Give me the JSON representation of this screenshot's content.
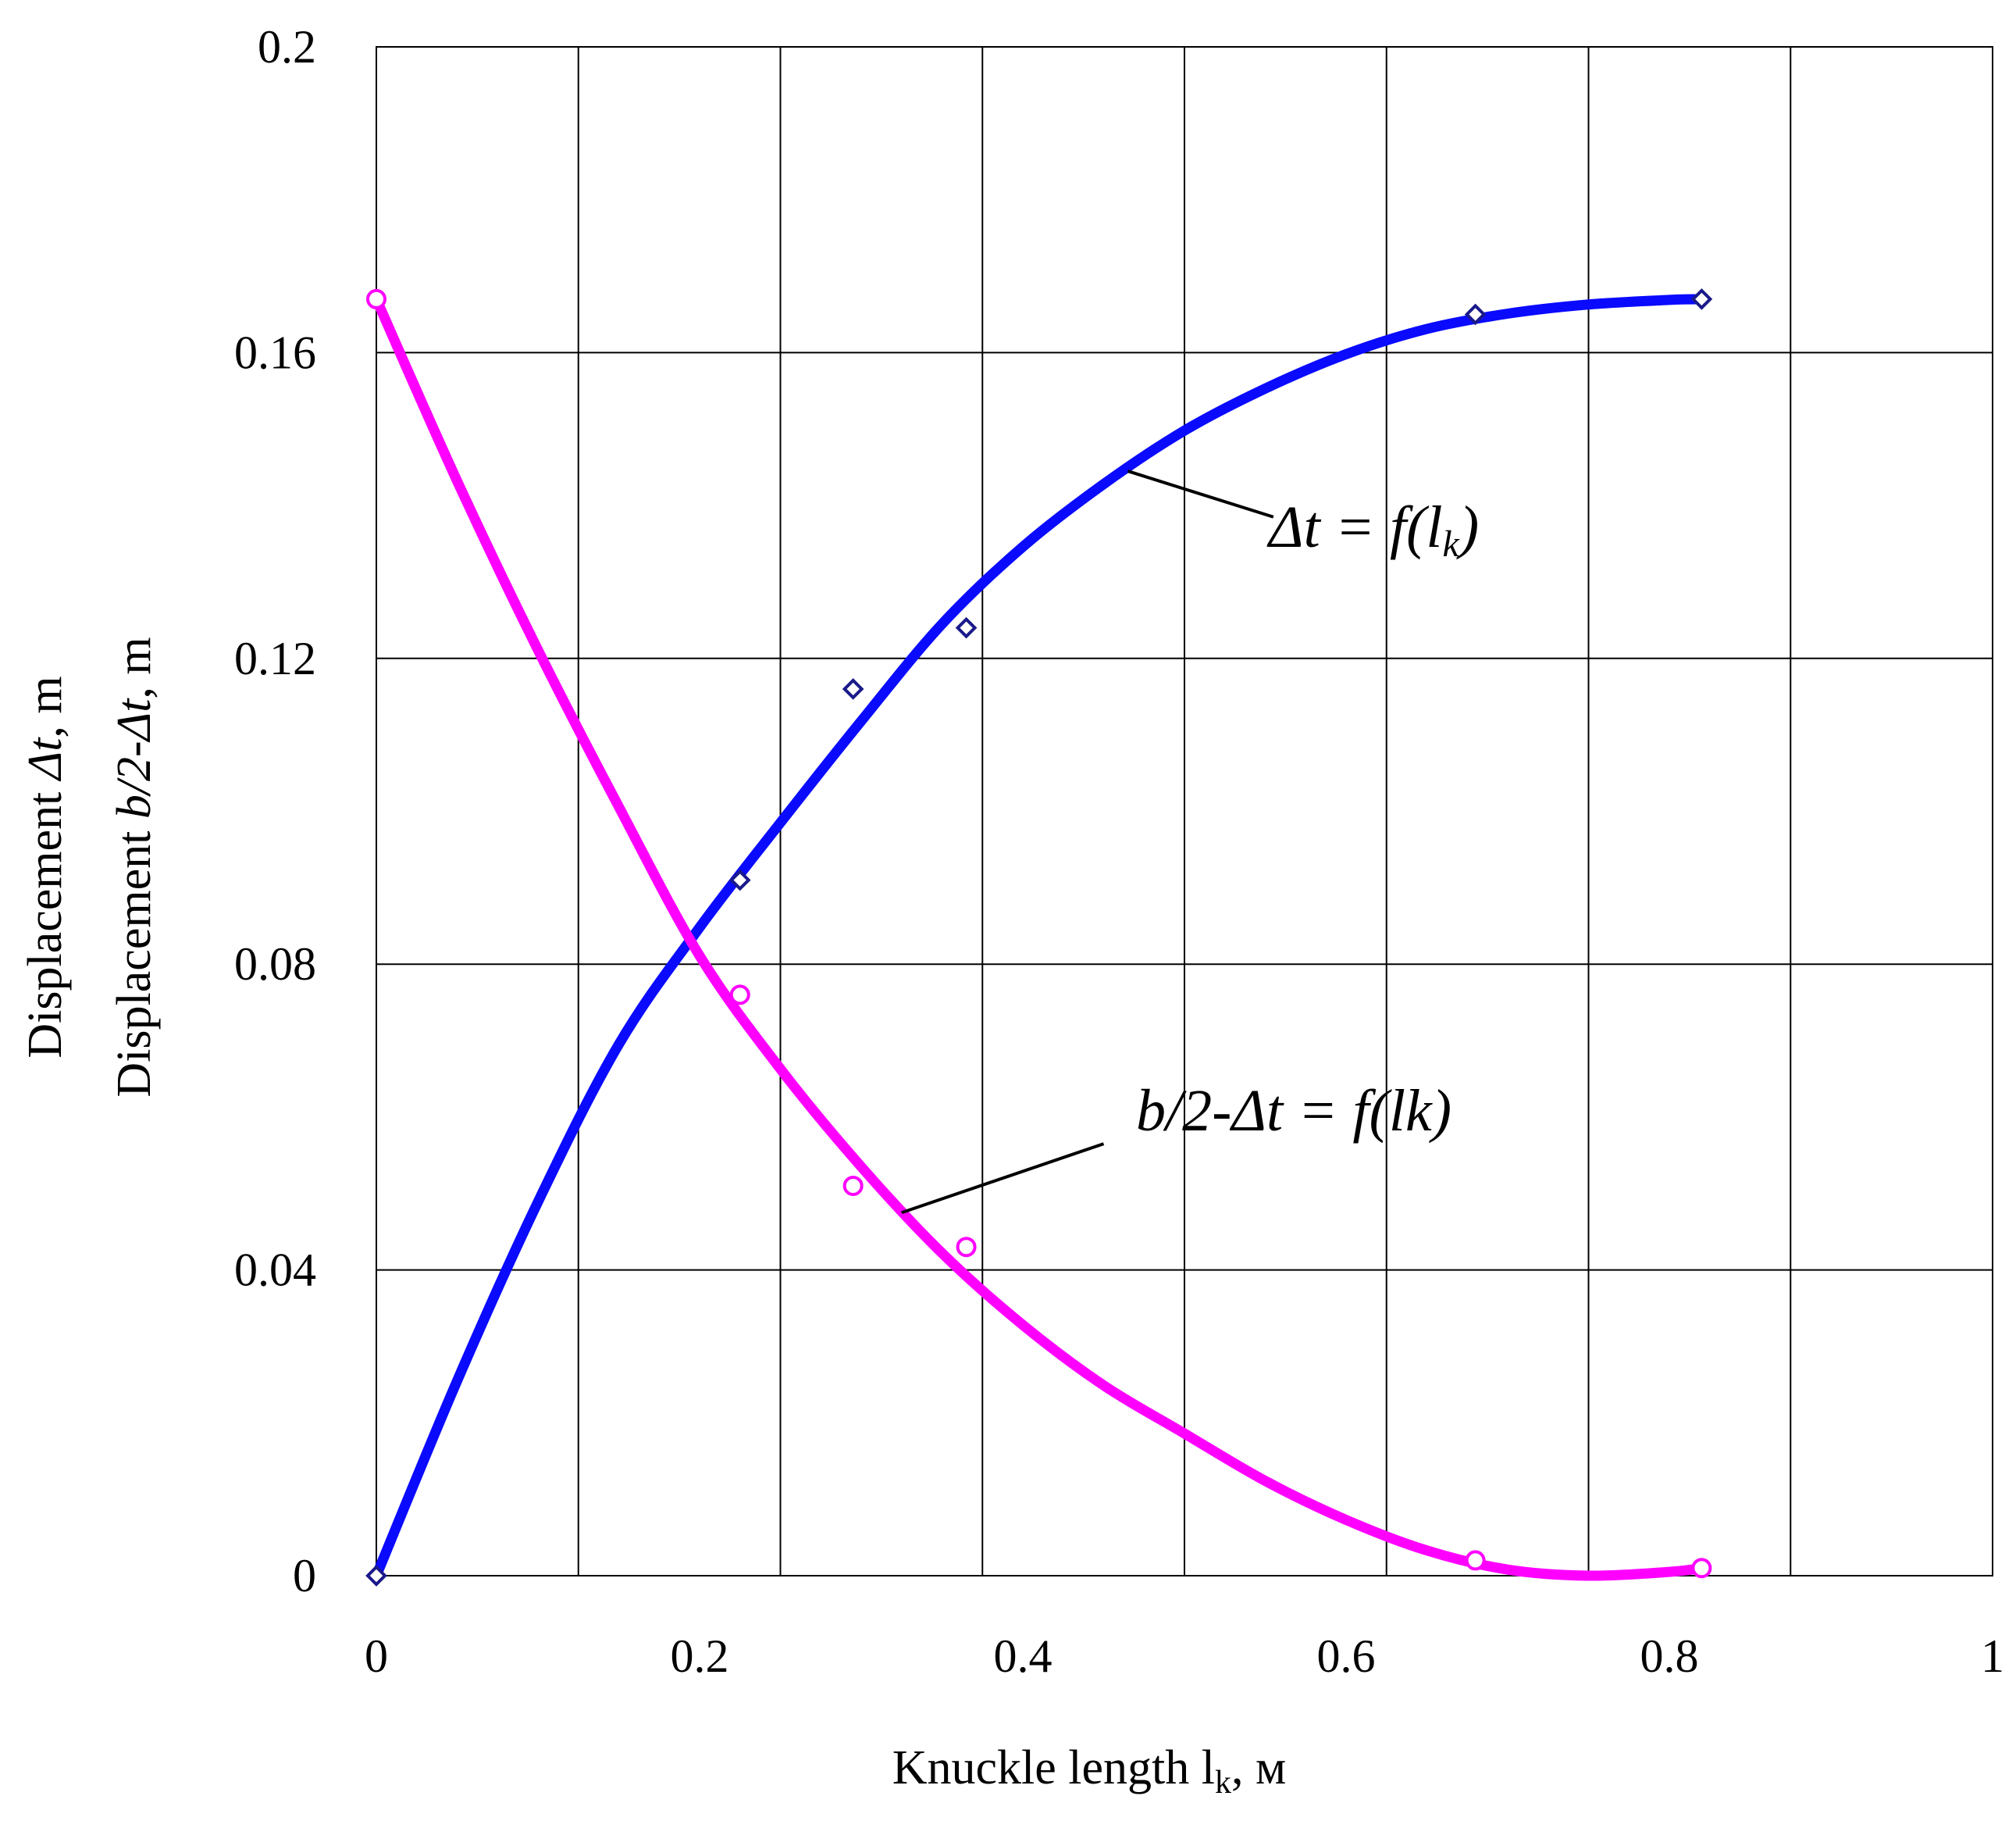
{
  "chart_data": {
    "type": "scatter",
    "xlim": [
      0,
      1
    ],
    "ylim": [
      0,
      0.2
    ],
    "x_ticks": [
      "0",
      "0.2",
      "0.4",
      "0.6",
      "0.8",
      "1"
    ],
    "y_ticks": [
      "0",
      "0.04",
      "0.08",
      "0.12",
      "0.16",
      "0.2"
    ],
    "grid": true,
    "xlabel": {
      "text": "Knuckle length l",
      "sub": "k",
      "suffix": ", м"
    },
    "ylabel_line1": {
      "prefix": "Displacement ",
      "italic": "Δt",
      "suffix": ", m"
    },
    "ylabel_line2": {
      "prefix": "Displacement ",
      "italic": "b/2-Δt",
      "suffix": ", m"
    },
    "series": [
      {
        "annotation": {
          "main": "Δt = f(l",
          "sub": "k",
          "close": ")"
        },
        "color": "#0a0aff",
        "marker_color": "#1a1a8a",
        "marker": "diamond",
        "points": [
          {
            "x": 0.0,
            "y": 0.0
          },
          {
            "x": 0.225,
            "y": 0.091
          },
          {
            "x": 0.295,
            "y": 0.116
          },
          {
            "x": 0.365,
            "y": 0.124
          },
          {
            "x": 0.68,
            "y": 0.165
          },
          {
            "x": 0.82,
            "y": 0.167
          }
        ],
        "curve": [
          {
            "x": 0.0,
            "y": 0.0
          },
          {
            "x": 0.05,
            "y": 0.0255
          },
          {
            "x": 0.1,
            "y": 0.0489
          },
          {
            "x": 0.15,
            "y": 0.0695
          },
          {
            "x": 0.2,
            "y": 0.0848
          },
          {
            "x": 0.25,
            "y": 0.0985
          },
          {
            "x": 0.3,
            "y": 0.1118
          },
          {
            "x": 0.35,
            "y": 0.1245
          },
          {
            "x": 0.4,
            "y": 0.1346
          },
          {
            "x": 0.45,
            "y": 0.1428
          },
          {
            "x": 0.5,
            "y": 0.1498
          },
          {
            "x": 0.55,
            "y": 0.1553
          },
          {
            "x": 0.6,
            "y": 0.1598
          },
          {
            "x": 0.65,
            "y": 0.1631
          },
          {
            "x": 0.7,
            "y": 0.1651
          },
          {
            "x": 0.75,
            "y": 0.1663
          },
          {
            "x": 0.8,
            "y": 0.1669
          },
          {
            "x": 0.82,
            "y": 0.167
          }
        ]
      },
      {
        "annotation": {
          "main": "b/2-Δt = f(lk)",
          "sub": "",
          "close": ""
        },
        "color": "#ff00ff",
        "marker_color": "#ff00ff",
        "marker": "circle",
        "points": [
          {
            "x": 0.0,
            "y": 0.167
          },
          {
            "x": 0.225,
            "y": 0.076
          },
          {
            "x": 0.295,
            "y": 0.051
          },
          {
            "x": 0.365,
            "y": 0.043
          },
          {
            "x": 0.68,
            "y": 0.002
          },
          {
            "x": 0.82,
            "y": 0.001
          }
        ],
        "curve": [
          {
            "x": 0.0,
            "y": 0.167
          },
          {
            "x": 0.05,
            "y": 0.1432
          },
          {
            "x": 0.1,
            "y": 0.1211
          },
          {
            "x": 0.15,
            "y": 0.1006
          },
          {
            "x": 0.2,
            "y": 0.0811
          },
          {
            "x": 0.25,
            "y": 0.0663
          },
          {
            "x": 0.3,
            "y": 0.0535
          },
          {
            "x": 0.35,
            "y": 0.0422
          },
          {
            "x": 0.4,
            "y": 0.0328
          },
          {
            "x": 0.45,
            "y": 0.0249
          },
          {
            "x": 0.5,
            "y": 0.0186
          },
          {
            "x": 0.55,
            "y": 0.0124
          },
          {
            "x": 0.6,
            "y": 0.0073
          },
          {
            "x": 0.65,
            "y": 0.0033
          },
          {
            "x": 0.7,
            "y": 0.0008
          },
          {
            "x": 0.75,
            "y": 0.0
          },
          {
            "x": 0.8,
            "y": 0.0005
          },
          {
            "x": 0.82,
            "y": 0.001
          }
        ]
      }
    ],
    "leaders": [
      {
        "from": {
          "x": 0.465,
          "y": 0.1445
        },
        "to": {
          "x": 0.555,
          "y": 0.1385
        }
      },
      {
        "from": {
          "x": 0.325,
          "y": 0.0475
        },
        "to": {
          "x": 0.45,
          "y": 0.0565
        }
      }
    ]
  }
}
